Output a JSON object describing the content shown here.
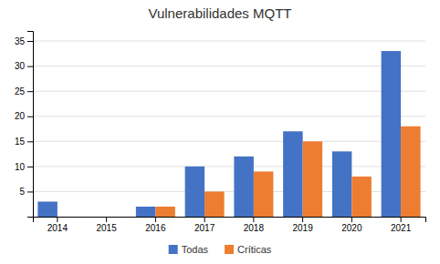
{
  "chart_data": {
    "type": "bar",
    "title": "Vulnerabilidades MQTT",
    "categories": [
      "2014",
      "2015",
      "2016",
      "2017",
      "2018",
      "2019",
      "2020",
      "2021"
    ],
    "series": [
      {
        "name": "Todas",
        "color": "#4472C4",
        "values": [
          3,
          0,
          2,
          10,
          12,
          17,
          13,
          33
        ]
      },
      {
        "name": "Críticas",
        "color": "#ED7D31",
        "values": [
          0,
          0,
          2,
          5,
          9,
          15,
          8,
          18
        ]
      }
    ],
    "ylim": [
      0,
      37
    ],
    "yticks": [
      5,
      10,
      15,
      20,
      25,
      30,
      35
    ],
    "grid": true,
    "legend": "bottom"
  }
}
